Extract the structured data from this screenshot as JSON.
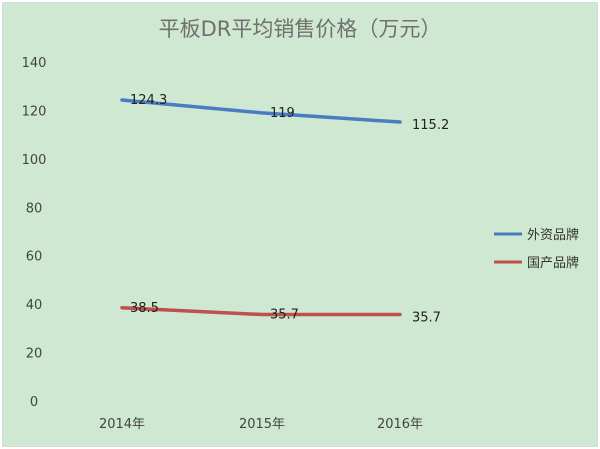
{
  "chart_data": {
    "type": "line",
    "title": "平板DR平均销售价格（万元）",
    "categories": [
      "2014年",
      "2015年",
      "2016年"
    ],
    "series": [
      {
        "name": "外资品牌",
        "values": [
          124.3,
          119,
          115.2
        ],
        "labels": [
          "124.3",
          "119",
          "115.2"
        ],
        "color": "#4a7cc4"
      },
      {
        "name": "国产品牌",
        "values": [
          38.5,
          35.7,
          35.7
        ],
        "labels": [
          "38.5",
          "35.7",
          "35.7"
        ],
        "color": "#c0504d"
      }
    ],
    "ylim": [
      0,
      140
    ],
    "yticks": [
      "0",
      "20",
      "40",
      "60",
      "80",
      "100",
      "120",
      "140"
    ],
    "grid": false,
    "legend": "right",
    "background": "#cfe8d1"
  }
}
